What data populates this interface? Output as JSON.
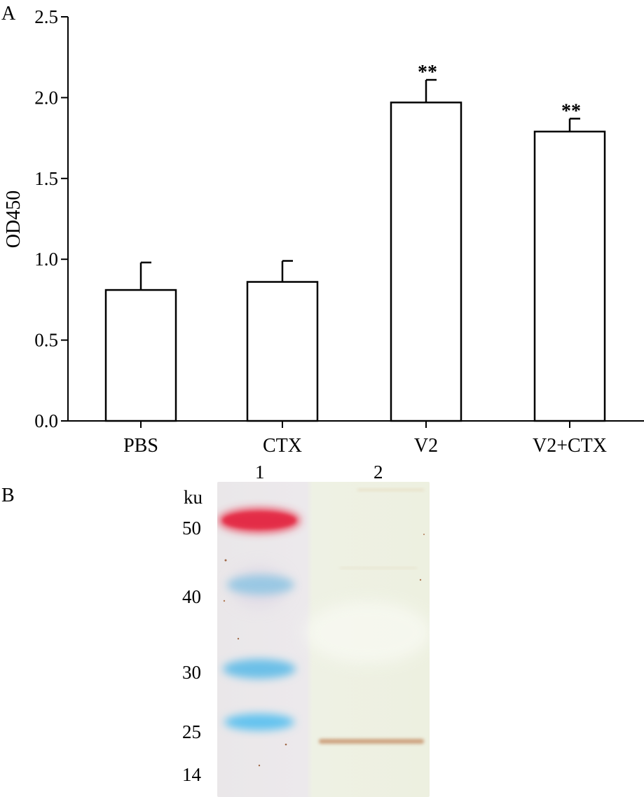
{
  "panel_a": {
    "label": "A",
    "chart_data": {
      "type": "bar",
      "categories": [
        "PBS",
        "CTX",
        "V2",
        "V2+CTX"
      ],
      "values": [
        0.81,
        0.86,
        1.97,
        1.79
      ],
      "error": [
        0.17,
        0.13,
        0.14,
        0.08
      ],
      "significance": [
        "",
        "",
        "**",
        "**"
      ],
      "title": "",
      "xlabel": "",
      "ylabel": "OD450",
      "ylim": [
        0,
        2.5
      ],
      "yticks": [
        "0.0",
        "0.5",
        "1.0",
        "1.5",
        "2.0",
        "2.5"
      ],
      "grid": false,
      "bar_fill": "#ffffff",
      "bar_stroke": "#000000"
    }
  },
  "panel_b": {
    "label": "B",
    "lane_labels": [
      "1",
      "2"
    ],
    "unit": "ku",
    "marker_labels": [
      "50",
      "40",
      "30",
      "25",
      "14"
    ],
    "marker_colors": [
      "#e8374f",
      "#7fc4e3",
      "#6cc0e8",
      "#63c3ef",
      ""
    ],
    "sample_band_color": "#c8956e"
  }
}
